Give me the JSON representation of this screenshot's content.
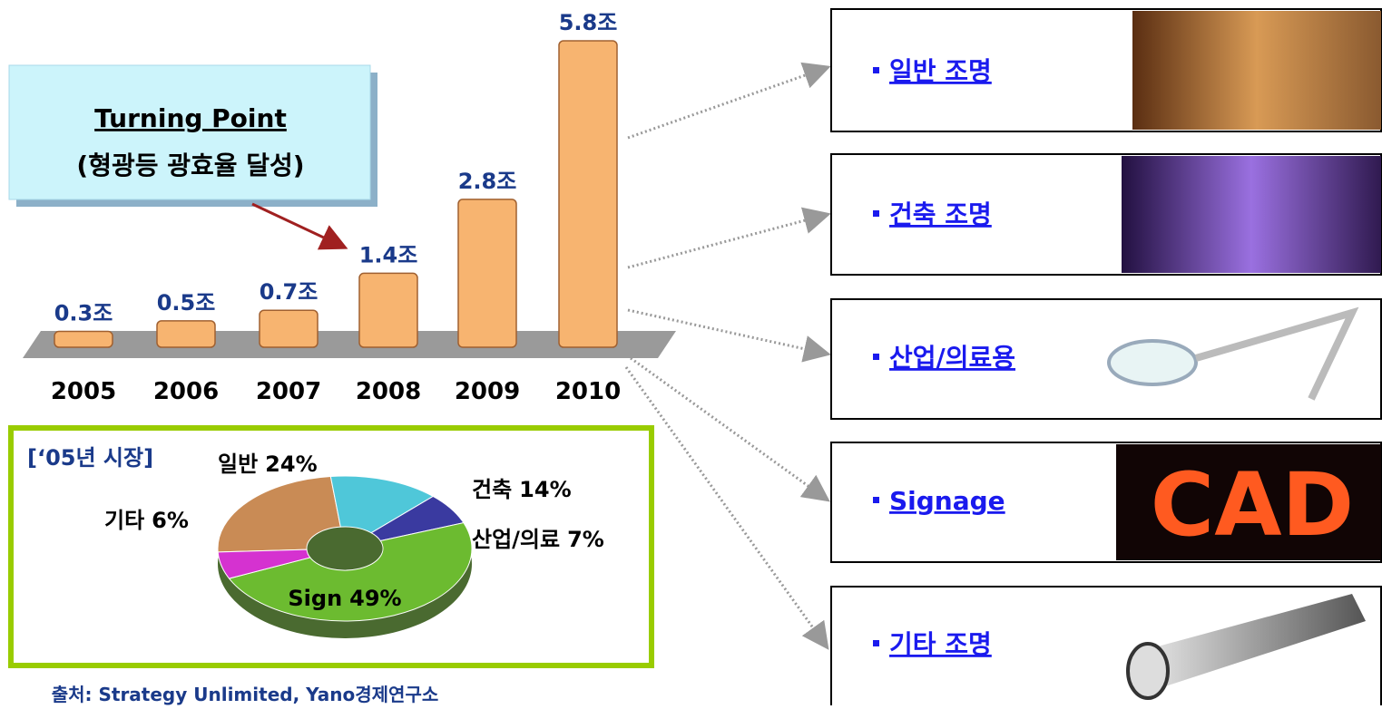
{
  "chart_data": [
    {
      "type": "bar",
      "categories": [
        "2005",
        "2006",
        "2007",
        "2008",
        "2009",
        "2010"
      ],
      "values": [
        0.3,
        0.5,
        0.7,
        1.4,
        2.8,
        5.8
      ],
      "value_labels": [
        "0.3조",
        "0.5조",
        "0.7조",
        "1.4조",
        "2.8조",
        "5.8조"
      ],
      "color": "#f7b470"
    },
    {
      "type": "pie",
      "title": "[‘05년 시장]",
      "categories": [
        "일반",
        "건축",
        "산업/의료",
        "Sign",
        "기타"
      ],
      "values": [
        24,
        14,
        7,
        49,
        6
      ],
      "value_labels": [
        "24%",
        "14%",
        "7%",
        "49%",
        "6%"
      ],
      "colors": [
        "#c98b55",
        "#4fc7d9",
        "#3a3aa0",
        "#6cbb30",
        "#d532d0"
      ]
    }
  ],
  "callout": {
    "title": "Turning Point",
    "subtitle": "(형광등 광효율 달성)"
  },
  "applications": [
    {
      "label": "일반 조명"
    },
    {
      "label": "건축 조명"
    },
    {
      "label": "산업/의료용"
    },
    {
      "label": "Signage",
      "image_text": "CAD"
    },
    {
      "label": "기타 조명"
    }
  ],
  "source": "출처: Strategy Unlimited, Yano경제연구소"
}
